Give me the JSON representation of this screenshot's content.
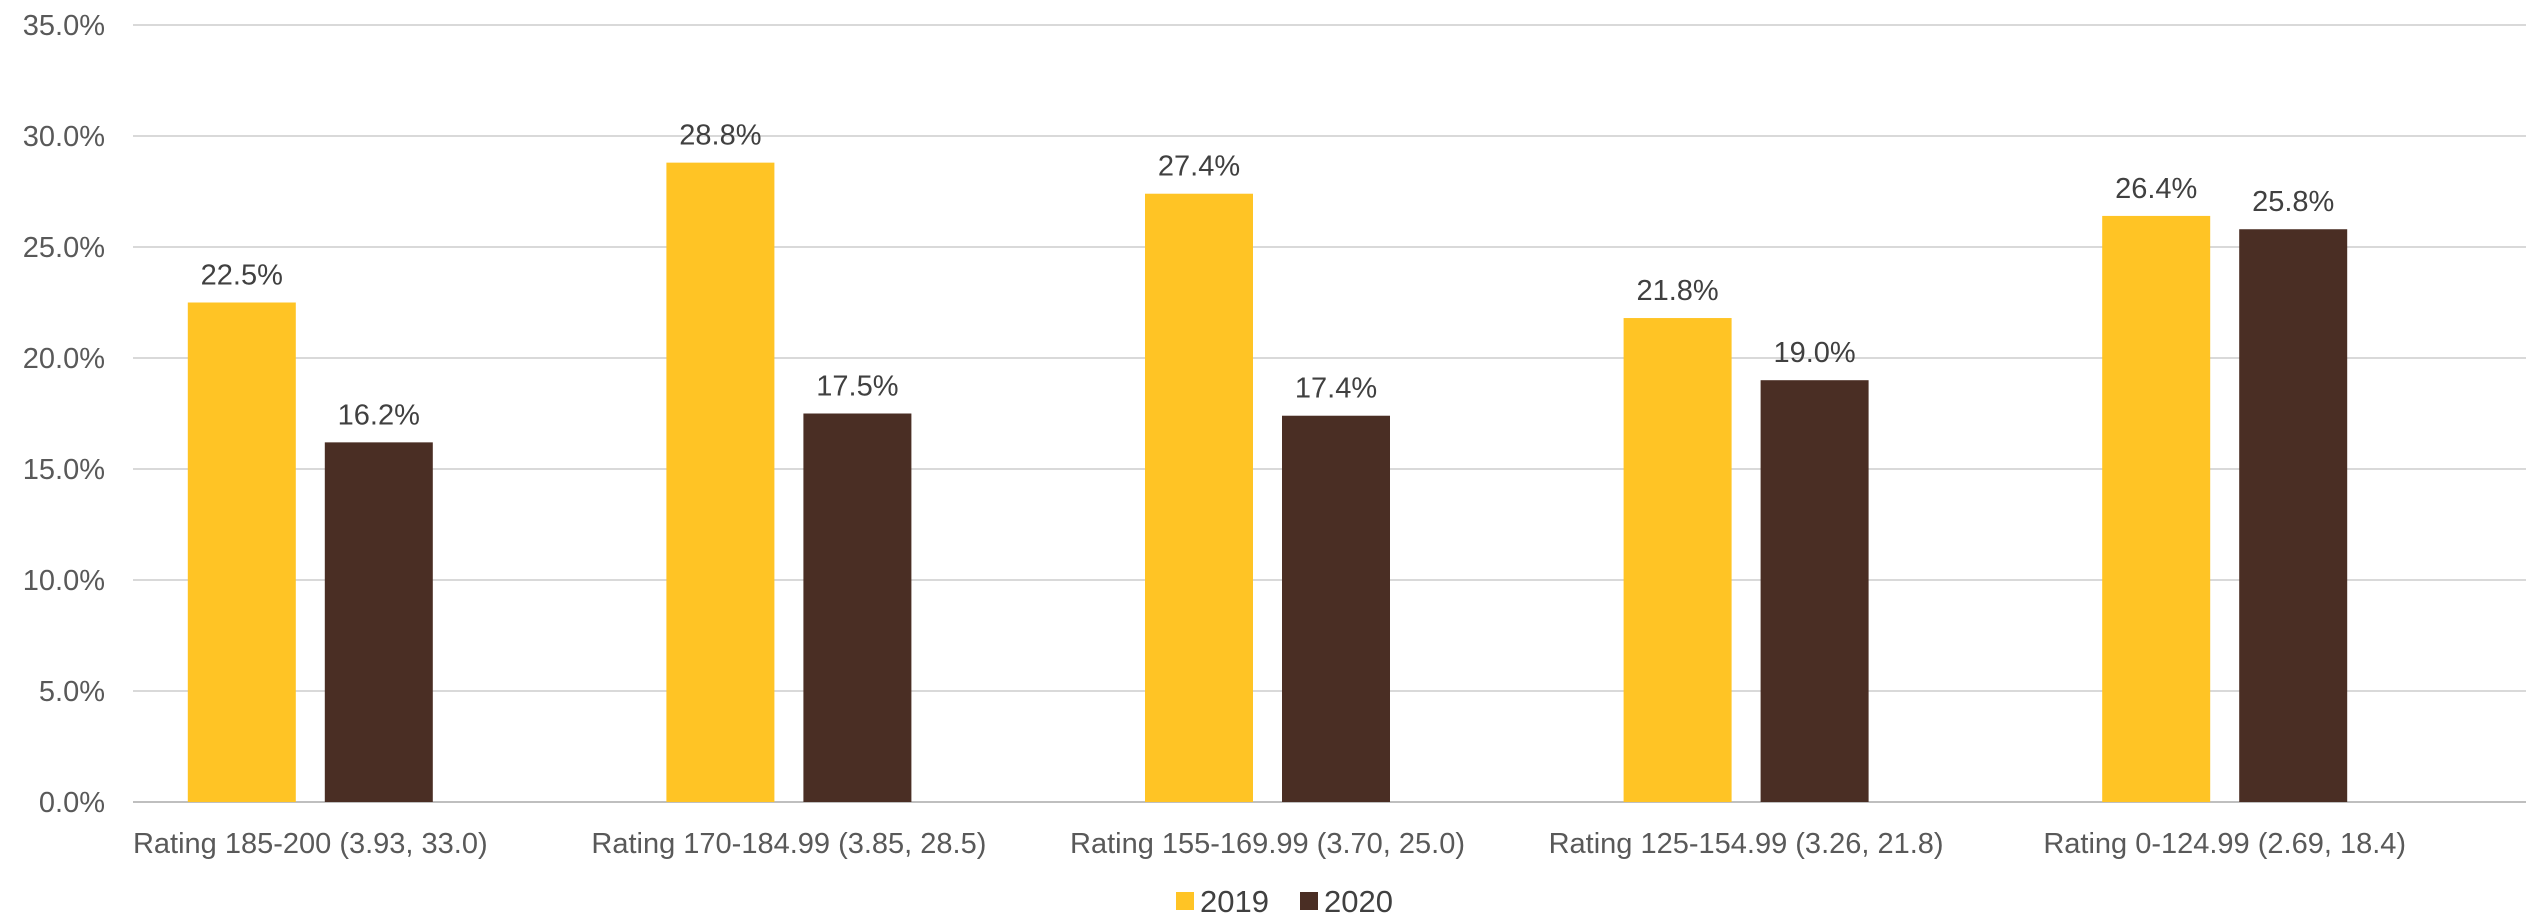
{
  "chart_data": {
    "type": "bar",
    "categories": [
      "Rating 185-200 (3.93, 33.0)",
      "Rating 170-184.99 (3.85, 28.5)",
      "Rating 155-169.99 (3.70, 25.0)",
      "Rating 125-154.99 (3.26, 21.8)",
      "Rating 0-124.99 (2.69, 18.4)"
    ],
    "series": [
      {
        "name": "2019",
        "color": "#FFC425",
        "values": [
          22.5,
          28.8,
          27.4,
          21.8,
          26.4
        ],
        "labels": [
          "22.5%",
          "28.8%",
          "27.4%",
          "21.8%",
          "26.4%"
        ]
      },
      {
        "name": "2020",
        "color": "#4A2E24",
        "values": [
          16.2,
          17.5,
          17.4,
          19.0,
          25.8
        ],
        "labels": [
          "16.2%",
          "17.5%",
          "17.4%",
          "19.0%",
          "25.8%"
        ]
      }
    ],
    "ylim": [
      0,
      35
    ],
    "yticks": [
      0,
      5,
      10,
      15,
      20,
      25,
      30,
      35
    ],
    "ytick_labels": [
      "0.0%",
      "5.0%",
      "10.0%",
      "15.0%",
      "20.0%",
      "25.0%",
      "30.0%",
      "35.0%"
    ],
    "title": "",
    "xlabel": "",
    "ylabel": "",
    "grid": true,
    "legend_position": "bottom-center"
  }
}
